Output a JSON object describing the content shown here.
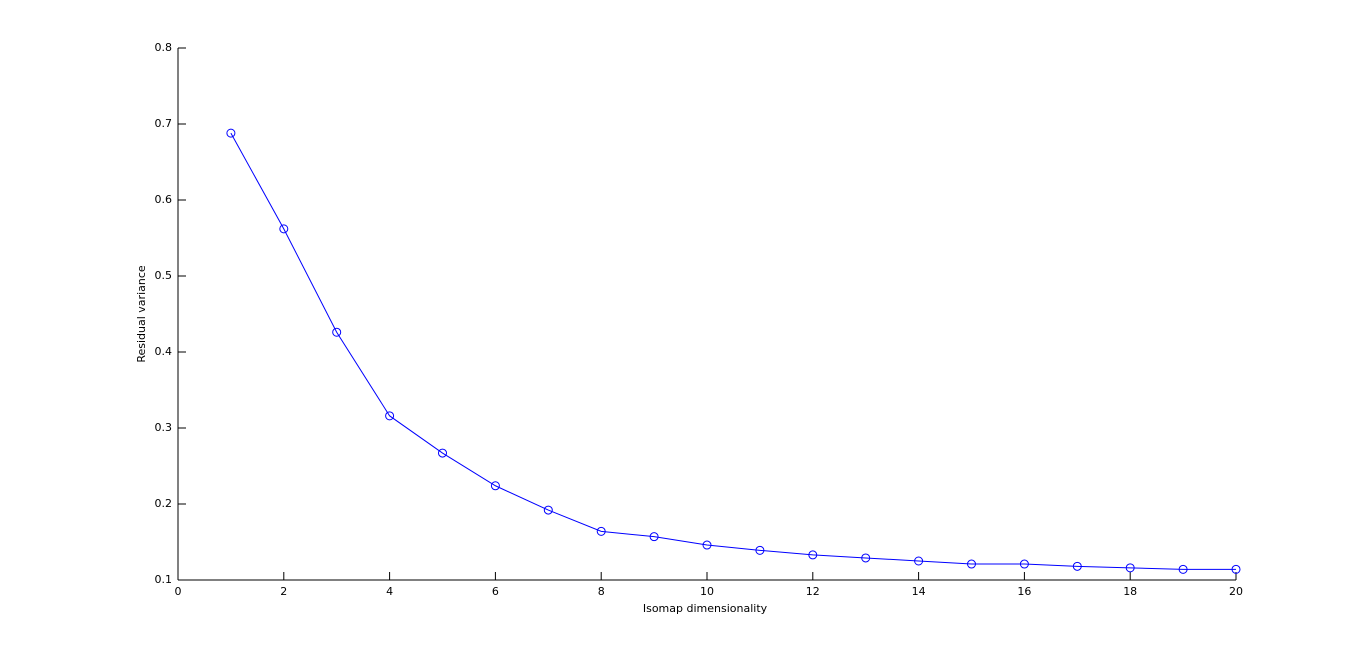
{
  "chart_data": {
    "type": "line",
    "xlabel": "Isomap dimensionality",
    "ylabel": "Residual variance",
    "x": [
      1,
      2,
      3,
      4,
      5,
      6,
      7,
      8,
      9,
      10,
      11,
      12,
      13,
      14,
      15,
      16,
      17,
      18,
      19,
      20
    ],
    "series": [
      {
        "color": "#0000ff",
        "marker": "circle",
        "values": [
          0.688,
          0.562,
          0.426,
          0.316,
          0.267,
          0.224,
          0.192,
          0.164,
          0.157,
          0.146,
          0.139,
          0.133,
          0.129,
          0.125,
          0.121,
          0.121,
          0.118,
          0.116,
          0.114,
          0.114
        ]
      }
    ],
    "xlim": [
      0,
      20
    ],
    "xticks": [
      0,
      2,
      4,
      6,
      8,
      10,
      12,
      14,
      16,
      18,
      20
    ],
    "ylim": [
      0.1,
      0.8
    ],
    "yticks": [
      0.1,
      0.2,
      0.3,
      0.4,
      0.5,
      0.6,
      0.7,
      0.8
    ],
    "grid": false
  }
}
